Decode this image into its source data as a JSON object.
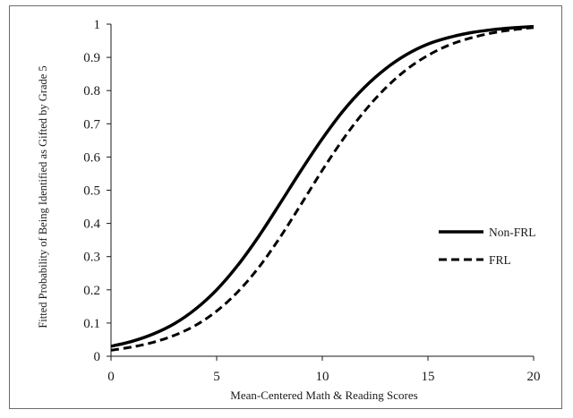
{
  "chart_data": {
    "type": "line",
    "title": "",
    "xlabel": "Mean-Centered Math & Reading Scores",
    "ylabel": "Fitted Probability of Being Identified as Gifted by Grade 5",
    "xlim": [
      0,
      20
    ],
    "ylim": [
      0,
      1
    ],
    "x_ticks": [
      0,
      5,
      10,
      15,
      20
    ],
    "y_ticks": [
      0,
      0.1,
      0.2,
      0.3,
      0.4,
      0.5,
      0.6,
      0.7,
      0.8,
      0.9,
      1
    ],
    "x_tick_labels": [
      "0",
      "5",
      "10",
      "15",
      "20"
    ],
    "y_tick_labels": [
      "0",
      "0.1",
      "0.2",
      "0.3",
      "0.4",
      "0.5",
      "0.6",
      "0.7",
      "0.8",
      "0.9",
      "1"
    ],
    "grid": false,
    "legend_position": "right",
    "series": [
      {
        "name": "Non-FRL",
        "line_style": "solid",
        "color": "#000000",
        "x": [
          0,
          1,
          2,
          3,
          4,
          5,
          6,
          7,
          8,
          9,
          10,
          11,
          12,
          13,
          14,
          15,
          16,
          17,
          18,
          19,
          20
        ],
        "y": [
          0.03,
          0.045,
          0.067,
          0.098,
          0.142,
          0.2,
          0.274,
          0.362,
          0.46,
          0.56,
          0.655,
          0.74,
          0.81,
          0.866,
          0.909,
          0.94,
          0.96,
          0.974,
          0.983,
          0.989,
          0.993
        ]
      },
      {
        "name": "FRL",
        "line_style": "dashed",
        "color": "#000000",
        "x": [
          0,
          1,
          2,
          3,
          4,
          5,
          6,
          7,
          8,
          9,
          10,
          11,
          12,
          13,
          14,
          15,
          16,
          17,
          18,
          19,
          20
        ],
        "y": [
          0.018,
          0.028,
          0.042,
          0.063,
          0.093,
          0.136,
          0.194,
          0.268,
          0.358,
          0.458,
          0.56,
          0.655,
          0.738,
          0.808,
          0.864,
          0.906,
          0.937,
          0.958,
          0.973,
          0.983,
          0.99
        ]
      }
    ]
  }
}
